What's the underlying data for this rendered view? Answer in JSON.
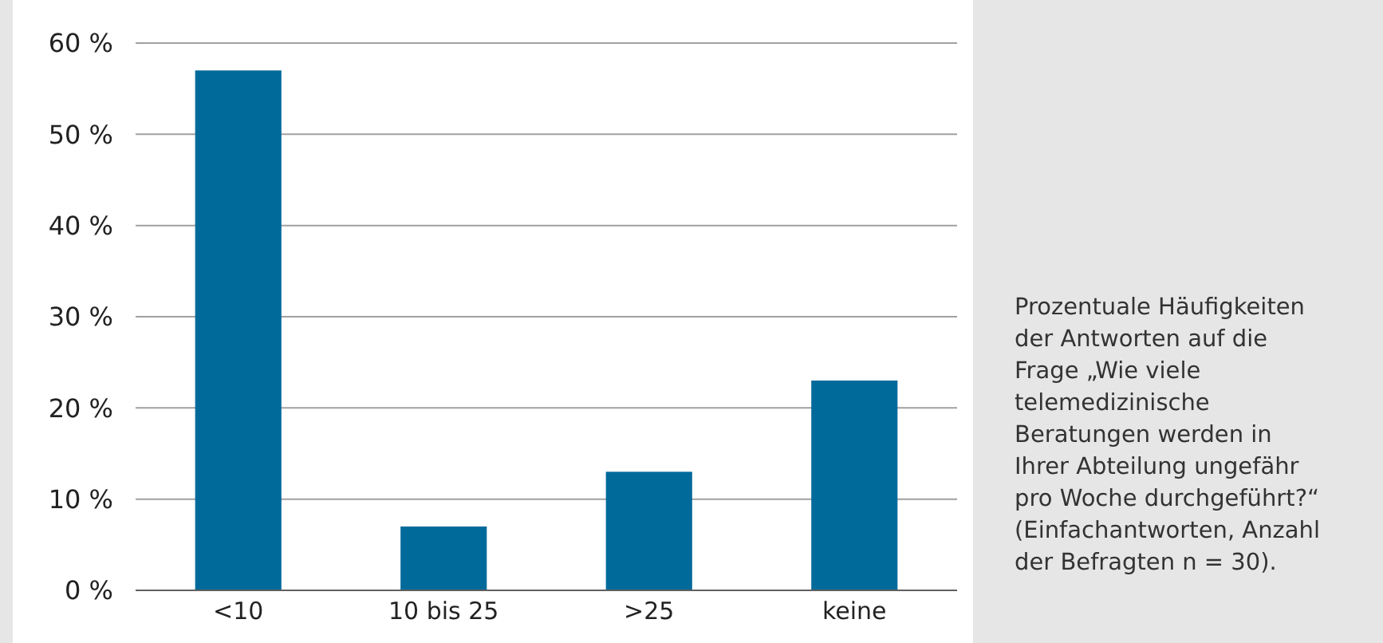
{
  "chart_data": {
    "type": "bar",
    "categories": [
      "<10",
      "10 bis 25",
      ">25",
      "keine"
    ],
    "values": [
      57,
      7,
      13,
      23
    ],
    "color": "#006a9b",
    "ylim": [
      0,
      60
    ],
    "yticks": [
      {
        "value": 0,
        "label": "0 %"
      },
      {
        "value": 10,
        "label": "10 %"
      },
      {
        "value": 20,
        "label": "20 %"
      },
      {
        "value": 30,
        "label": "30 %"
      },
      {
        "value": 40,
        "label": "40 %"
      },
      {
        "value": 50,
        "label": "50 %"
      },
      {
        "value": 60,
        "label": "60 %"
      }
    ],
    "grid": "y",
    "annotations": [
      "Prozentuale Häufigkeiten der Antworten auf die Frage „Wie viele telemedizinische Beratungen werden in Ihrer Abteilung ungefähr pro Woche durchgeführt?“ (Einfachantworten, Anzahl der Befragten n = 30)."
    ]
  }
}
